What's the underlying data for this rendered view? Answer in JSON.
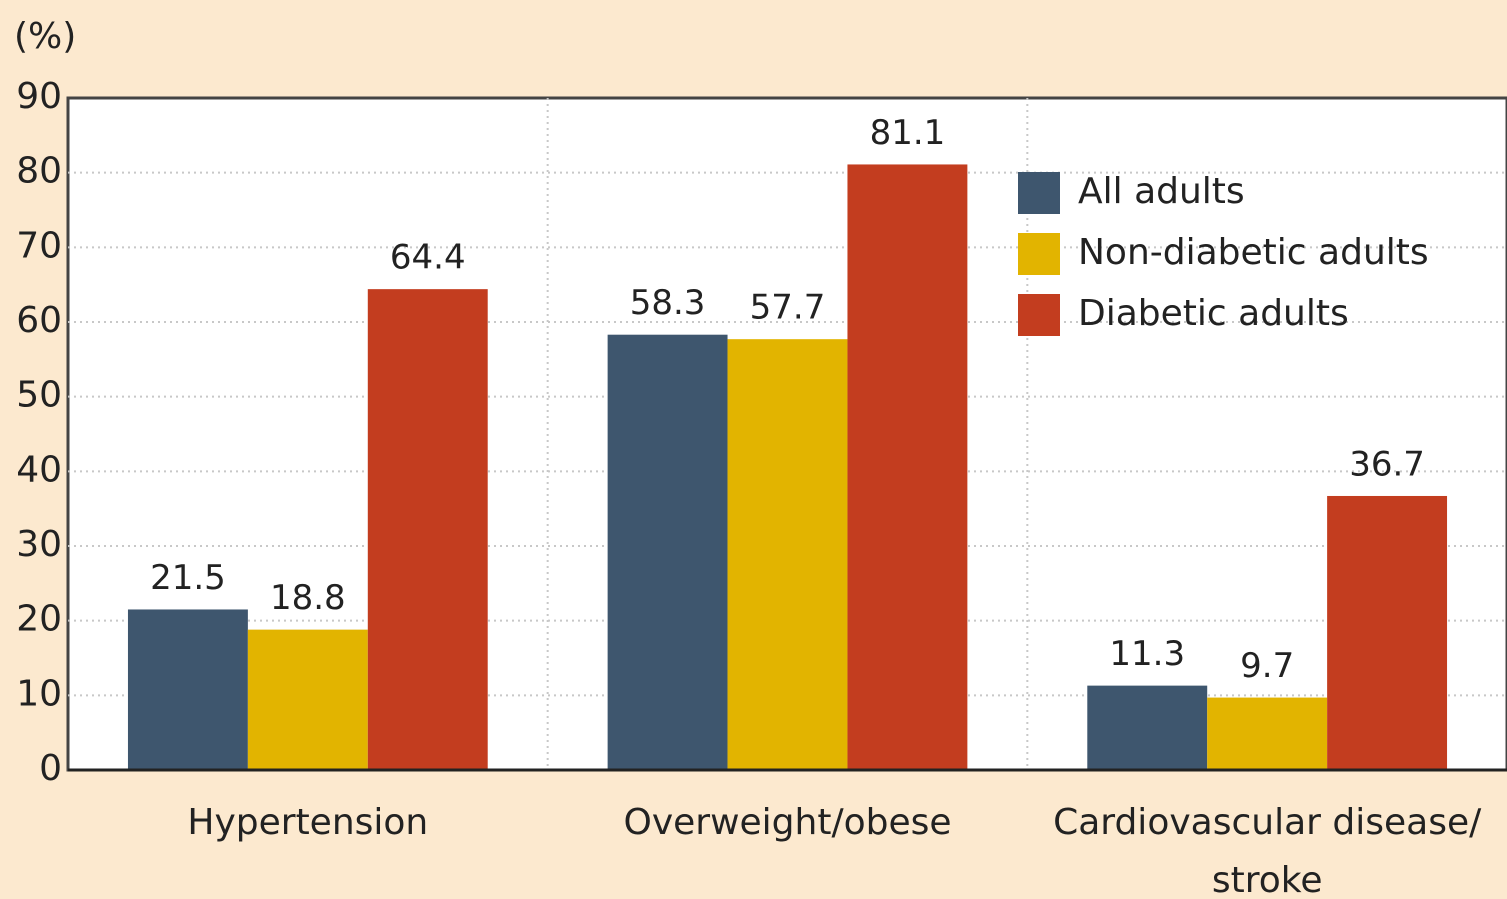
{
  "chart_data": {
    "type": "bar",
    "y_label": "(%)",
    "categories": [
      "Hypertension",
      "Overweight/obese",
      "Cardiovascular disease/\nstroke"
    ],
    "series": [
      {
        "name": "All adults",
        "color": "#3e566e",
        "values": [
          21.5,
          58.3,
          11.3
        ]
      },
      {
        "name": "Non-diabetic adults",
        "color": "#e2b400",
        "values": [
          18.8,
          57.7,
          9.7
        ]
      },
      {
        "name": "Diabetic adults",
        "color": "#c33d1f",
        "values": [
          64.4,
          81.1,
          36.7
        ]
      }
    ],
    "ylim": [
      0,
      90
    ],
    "yticks": [
      0,
      10,
      20,
      30,
      40,
      50,
      60,
      70,
      80,
      90
    ],
    "grid": true,
    "legend": "upper right"
  }
}
